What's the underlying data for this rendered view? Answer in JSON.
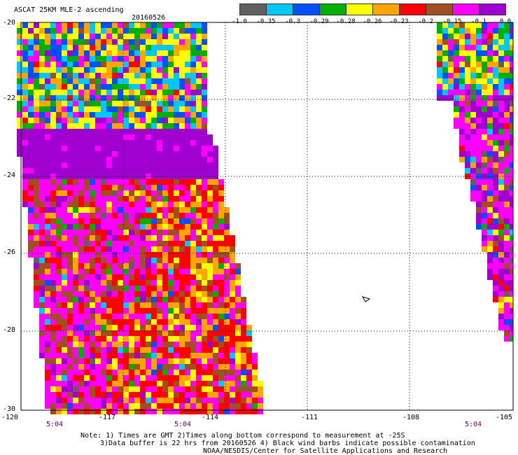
{
  "header": {
    "title": "ASCAT 25KM MLE-2 ascending",
    "date": "20160526"
  },
  "colorbar": {
    "labels": [
      "-1.0",
      "-0.35",
      "-0.3",
      "-0.29",
      "-0.28",
      "-0.26",
      "-0.23",
      "-0.2",
      "-0.15",
      "-0.1",
      "0.0"
    ],
    "colors": [
      "#606060",
      "#00c8ff",
      "#0050ff",
      "#00b000",
      "#ffff00",
      "#ffa500",
      "#ff0000",
      "#a05020",
      "#ff00ff",
      "#a000d0"
    ]
  },
  "axes": {
    "lat_labels": [
      "-20",
      "-22",
      "-24",
      "-26",
      "-28",
      "-30"
    ],
    "lon_labels": [
      "-120",
      "-117",
      "-114",
      "-111",
      "-108",
      "-105"
    ],
    "time_labels": [
      "5:04",
      "5:04",
      "5:04"
    ]
  },
  "notes": {
    "line1": "Note: 1) Times are GMT 2)Times along bottom correspond to measurement at -25S",
    "line2": "3)Data buffer is 22 hrs from 20160526 4) Black wind barbs indicate possible contamination",
    "line3": "NOAA/NESDIS/Center for Satellite Applications and Research"
  }
}
